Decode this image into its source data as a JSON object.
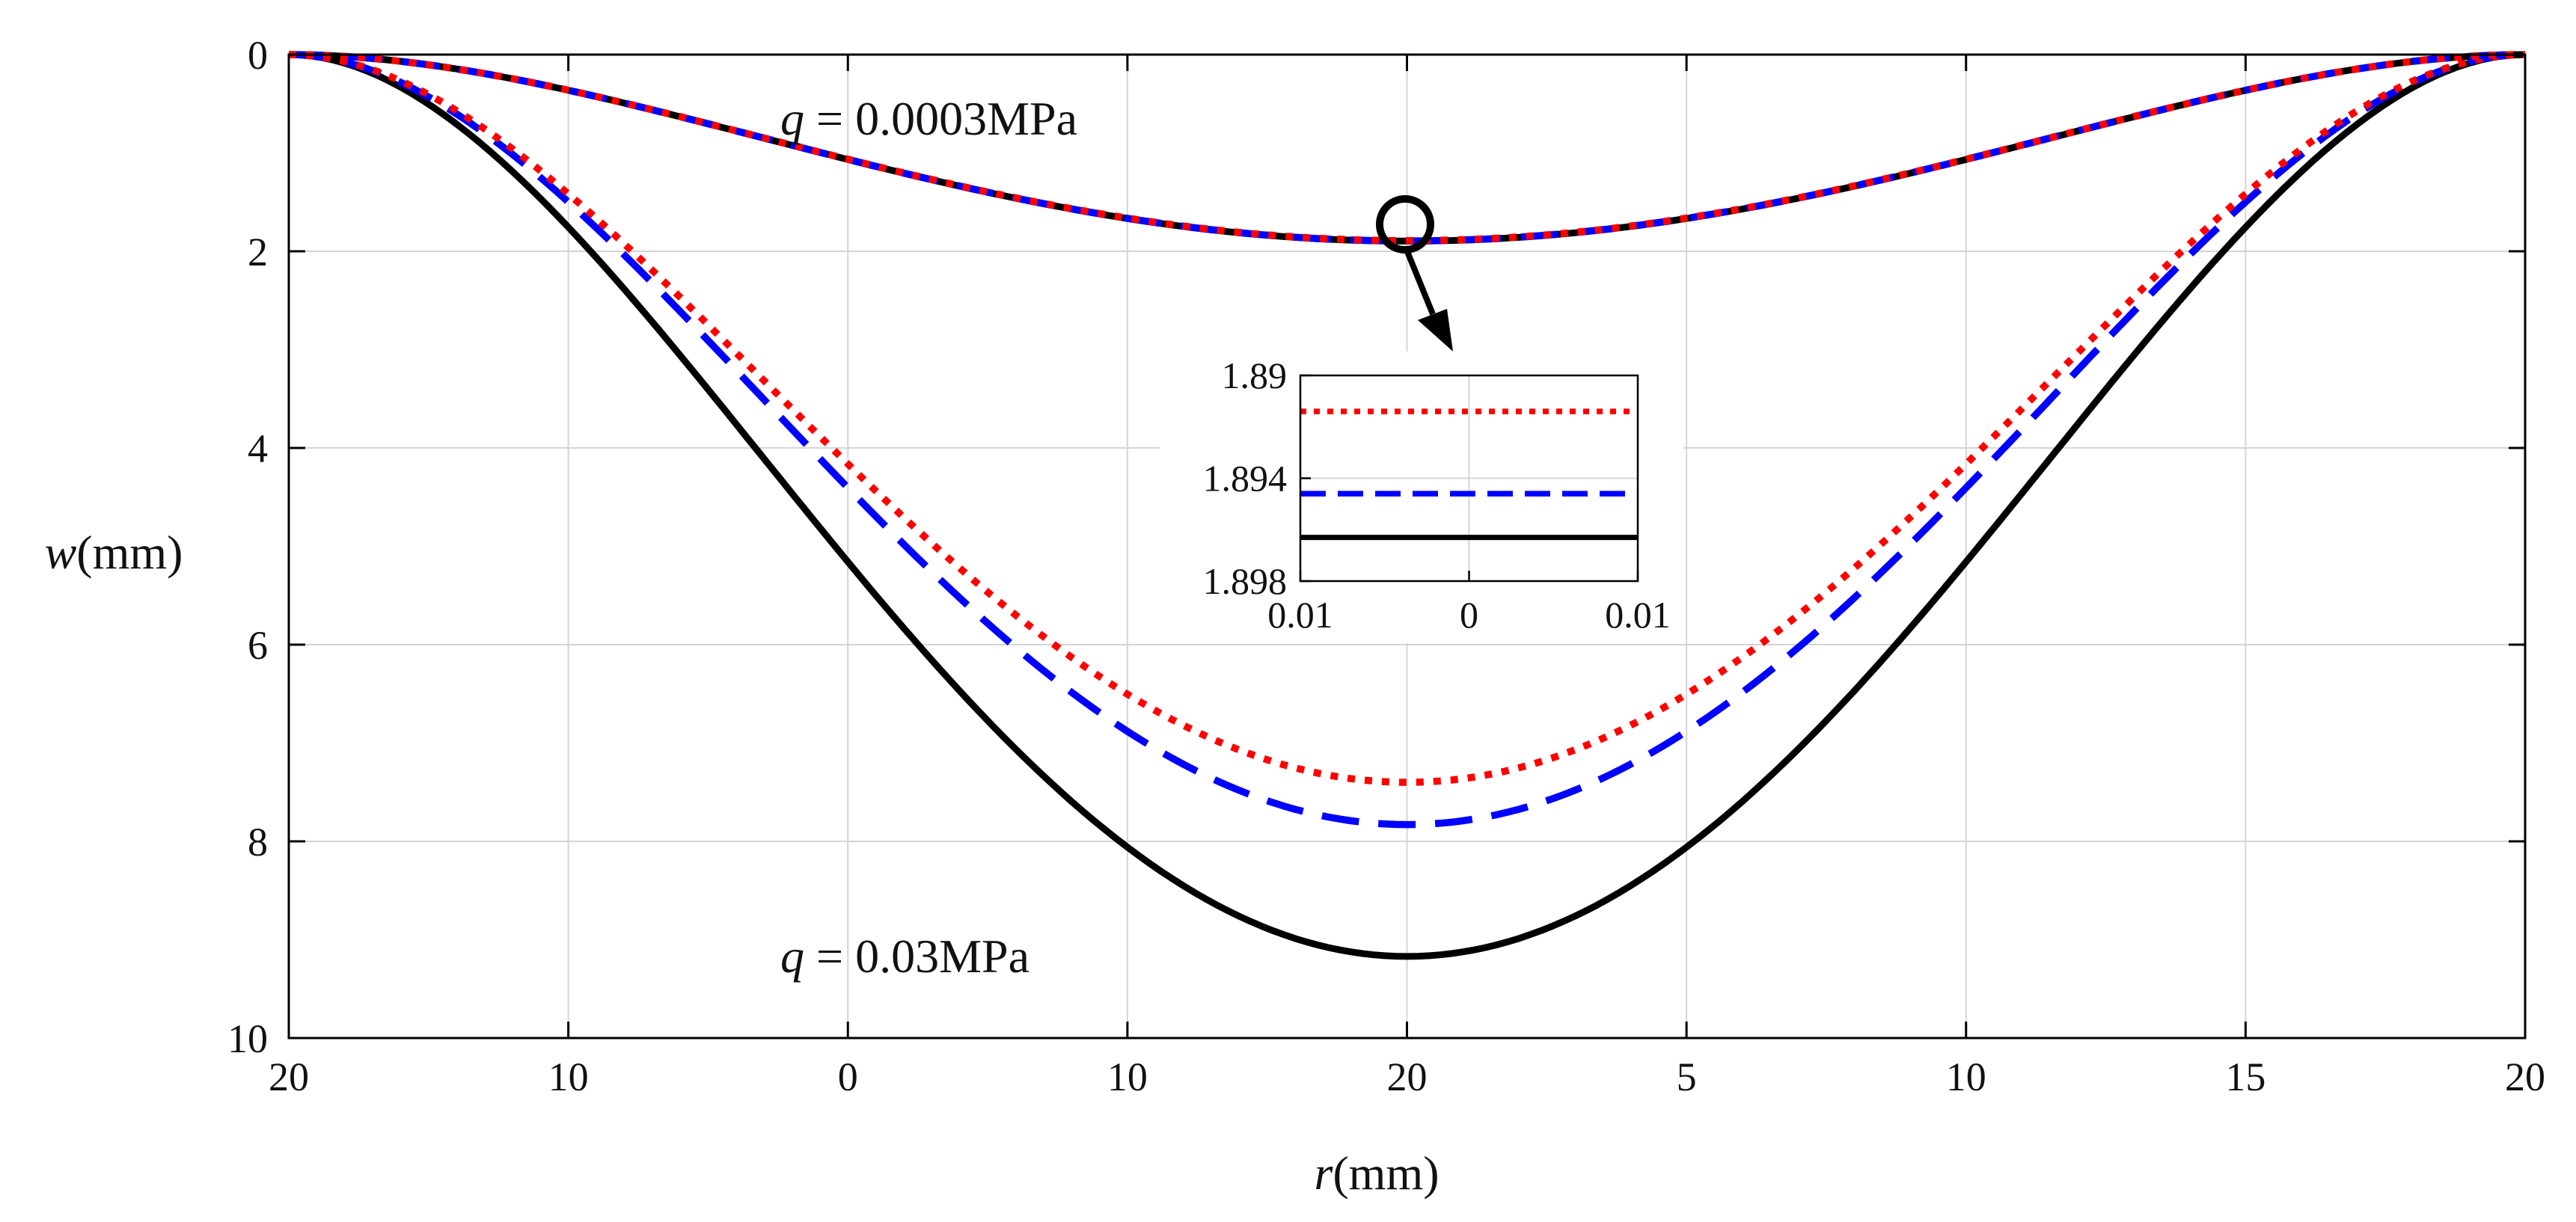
{
  "chart_data": {
    "type": "line",
    "xlabel_var": "r",
    "xlabel_unit": "(mm)",
    "ylabel_var": "w",
    "ylabel_unit": "(mm)",
    "x_range": [
      -20,
      20
    ],
    "y_range": [
      0,
      10
    ],
    "y_reversed": true,
    "grid": true,
    "x_tick_labels": [
      "20",
      "10",
      "0",
      "10",
      "20",
      "5",
      "10",
      "15",
      "20"
    ],
    "y_ticks": [
      0,
      2,
      4,
      6,
      8,
      10
    ],
    "y_tick_labels": [
      "0",
      "2",
      "4",
      "6",
      "8",
      "10"
    ],
    "series": [
      {
        "name": "q = 0.0003MPa (solid)",
        "color": "#000000",
        "style": "solid",
        "center_deflection": 1.8963
      },
      {
        "name": "q = 0.0003MPa (dashed)",
        "color": "#0000ff",
        "style": "dashed",
        "center_deflection": 1.8946
      },
      {
        "name": "q = 0.0003MPa (dotted)",
        "color": "#ff0000",
        "style": "dotted",
        "center_deflection": 1.8914
      },
      {
        "name": "q = 0.03MPa (solid)",
        "color": "#000000",
        "style": "solid",
        "center_deflection": 9.17
      },
      {
        "name": "q = 0.03MPa (dashed)",
        "color": "#0000ff",
        "style": "dashed",
        "center_deflection": 7.83
      },
      {
        "name": "q = 0.03MPa (dotted)",
        "color": "#ff0000",
        "style": "dotted",
        "center_deflection": 7.4
      }
    ],
    "annotations": {
      "top_q": "q",
      "top_value": " = 0.0003MPa",
      "bottom_q": "q",
      "bottom_value": " = 0.03MPa"
    },
    "inset": {
      "x_range": [
        -0.01,
        0.01
      ],
      "y_range": [
        1.89,
        1.898
      ],
      "y_reversed": true,
      "x_tick_labels": [
        "0.01",
        "0",
        "0.01"
      ],
      "y_ticks": [
        1.89,
        1.894,
        1.898
      ],
      "y_tick_labels": [
        "1.89",
        "1.894",
        "1.898"
      ],
      "values": {
        "dotted": 1.8914,
        "dashed": 1.8946,
        "solid": 1.8963
      }
    }
  }
}
